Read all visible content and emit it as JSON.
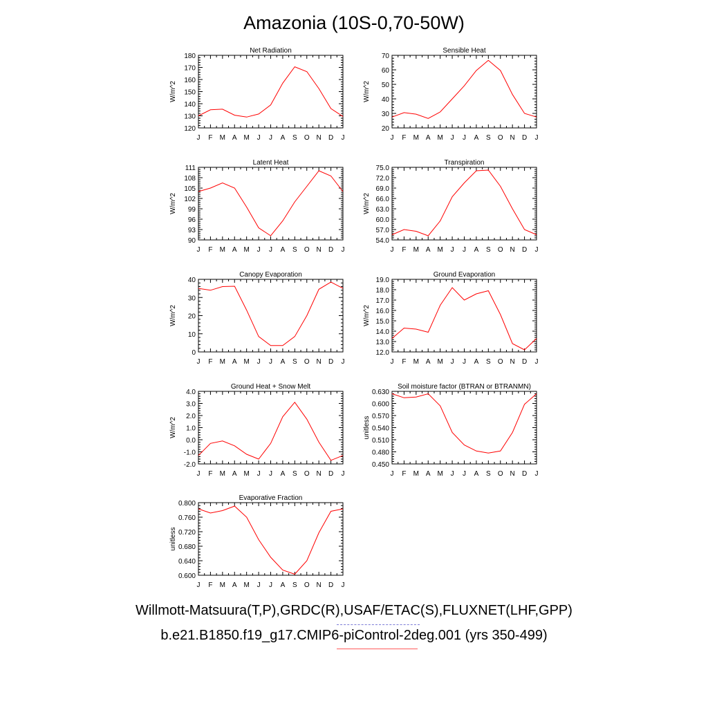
{
  "title": "Amazonia (10S-0,70-50W)",
  "months": [
    "J",
    "F",
    "M",
    "A",
    "M",
    "J",
    "J",
    "A",
    "S",
    "O",
    "N",
    "D",
    "J"
  ],
  "series_color": "#ff0000",
  "footer": {
    "obs": "Willmott-Matsuura(T,P),GRDC(R),USAF/ETAC(S),FLUXNET(LHF,GPP)",
    "model": "b.e21.B1850.f19_g17.CMIP6-piControl-2deg.001 (yrs 350-499)"
  },
  "chart_data": [
    {
      "type": "line",
      "title": "Net Radiation",
      "ylabel": "W/m^2",
      "ylim": [
        120,
        180
      ],
      "yticks": [
        "120",
        "130",
        "140",
        "150",
        "160",
        "170",
        "180"
      ],
      "values": [
        130,
        135,
        135.5,
        130.5,
        129,
        131.5,
        139,
        157,
        170.5,
        166.5,
        152.5,
        136,
        129.5
      ]
    },
    {
      "type": "line",
      "title": "Sensible Heat",
      "ylabel": "W/m^2",
      "ylim": [
        20,
        70
      ],
      "yticks": [
        "20",
        "30",
        "40",
        "50",
        "60",
        "70"
      ],
      "values": [
        27.5,
        30.5,
        29.5,
        26.5,
        31,
        40,
        49,
        59.5,
        66.5,
        59.5,
        43,
        30,
        27.5
      ]
    },
    {
      "type": "line",
      "title": "Latent Heat",
      "ylabel": "W/m^2",
      "ylim": [
        90,
        111
      ],
      "yticks": [
        "90",
        "93",
        "96",
        "99",
        "102",
        "105",
        "108",
        "111"
      ],
      "values": [
        104,
        105,
        106.5,
        105,
        99.5,
        93.5,
        91.2,
        95.5,
        101,
        105.5,
        110,
        108.5,
        104
      ]
    },
    {
      "type": "line",
      "title": "Transpiration",
      "ylabel": "W/m^2",
      "ylim": [
        54,
        75
      ],
      "yticks": [
        "54.0",
        "57.0",
        "60.0",
        "63.0",
        "66.0",
        "69.0",
        "72.0",
        "75.0"
      ],
      "values": [
        55.5,
        57,
        56.5,
        55.2,
        59.5,
        66.5,
        70.5,
        74,
        74.2,
        69.5,
        63,
        57,
        55.5
      ]
    },
    {
      "type": "line",
      "title": "Canopy Evaporation",
      "ylabel": "W/m^2",
      "ylim": [
        0,
        40
      ],
      "yticks": [
        "0",
        "10",
        "20",
        "30",
        "40"
      ],
      "values": [
        35,
        34,
        36,
        36.2,
        23,
        8.5,
        3.5,
        3.5,
        8.5,
        20,
        34.5,
        38.5,
        35
      ]
    },
    {
      "type": "line",
      "title": "Ground Evaporation",
      "ylabel": "W/m^2",
      "ylim": [
        12,
        19
      ],
      "yticks": [
        "12.0",
        "13.0",
        "14.0",
        "15.0",
        "16.0",
        "17.0",
        "18.0",
        "19.0"
      ],
      "values": [
        13.3,
        14.3,
        14.2,
        13.9,
        16.5,
        18.2,
        17,
        17.6,
        17.9,
        15.6,
        12.8,
        12.2,
        13.3
      ]
    },
    {
      "type": "line",
      "title": "Ground Heat + Snow Melt",
      "ylabel": "W/m^2",
      "ylim": [
        -2,
        4
      ],
      "yticks": [
        "-2.0",
        "-1.0",
        "0.0",
        "1.0",
        "2.0",
        "3.0",
        "4.0"
      ],
      "values": [
        -1.3,
        -0.3,
        -0.1,
        -0.5,
        -1.2,
        -1.6,
        -0.3,
        1.9,
        3.1,
        1.7,
        -0.2,
        -1.7,
        -1.3
      ]
    },
    {
      "type": "line",
      "title": "Soil moisture factor (BTRAN or BTRANMN)",
      "ylabel": "unitless",
      "ylim": [
        0.45,
        0.63
      ],
      "yticks": [
        "0.450",
        "0.480",
        "0.510",
        "0.540",
        "0.570",
        "0.600",
        "0.630"
      ],
      "values": [
        0.624,
        0.614,
        0.616,
        0.624,
        0.594,
        0.528,
        0.497,
        0.482,
        0.477,
        0.482,
        0.528,
        0.598,
        0.624
      ]
    },
    {
      "type": "line",
      "title": "Evaporative Fraction",
      "ylabel": "unitless",
      "ylim": [
        0.6,
        0.81
      ],
      "yticks": [
        "0.600",
        "0.640",
        "0.680",
        "0.720",
        "0.760",
        "0.800"
      ],
      "values": [
        0.792,
        0.78,
        0.787,
        0.8,
        0.768,
        0.703,
        0.652,
        0.615,
        0.603,
        0.642,
        0.723,
        0.785,
        0.792
      ]
    }
  ]
}
